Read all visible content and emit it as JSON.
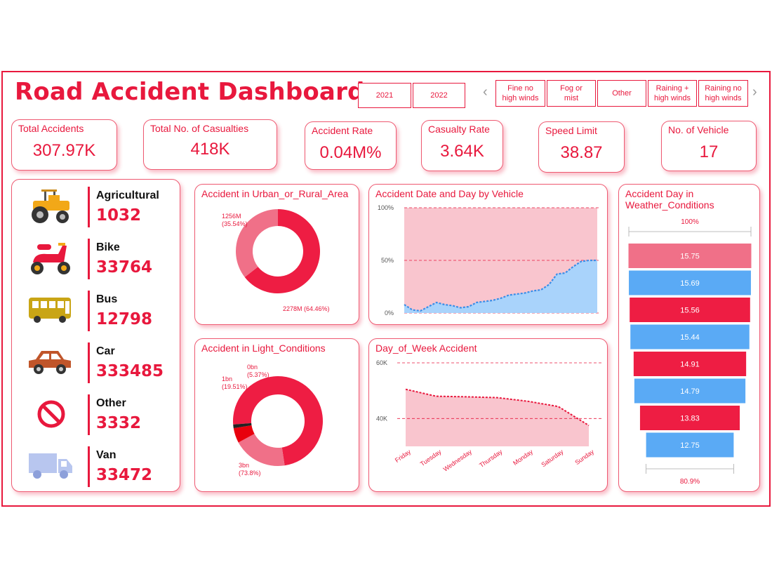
{
  "header": {
    "title": "Road Accident Dashboard"
  },
  "year_slicer": [
    "2021",
    "2022"
  ],
  "weather_slicer": [
    "Fine no high winds",
    "Fog or mist",
    "Other",
    "Raining + high winds",
    "Raining no high winds"
  ],
  "kpis": [
    {
      "label": "Total Accidents",
      "value": "307.97K"
    },
    {
      "label": "Total No. of Casualties",
      "value": "418K"
    },
    {
      "label": "Accident Rate",
      "value": "0.04M%"
    },
    {
      "label": "Casualty Rate",
      "value": "3.64K"
    },
    {
      "label": "Speed Limit",
      "value": "38.87"
    },
    {
      "label": "No. of Vehicle",
      "value": "17"
    }
  ],
  "vehicles": [
    {
      "name": "Agricultural",
      "value": "1032",
      "icon": "tractor-icon"
    },
    {
      "name": "Bike",
      "value": "33764",
      "icon": "scooter-icon"
    },
    {
      "name": "Bus",
      "value": "12798",
      "icon": "bus-icon"
    },
    {
      "name": "Car",
      "value": "333485",
      "icon": "car-icon"
    },
    {
      "name": "Other",
      "value": "3332",
      "icon": "no-entry-icon"
    },
    {
      "name": "Van",
      "value": "33472",
      "icon": "van-icon"
    }
  ],
  "colors": {
    "accent": "#e8183d",
    "pink": "#f07088",
    "light_pink": "#f9c5ce",
    "blue": "#5aaaf5",
    "light_blue": "#a9d3fb"
  },
  "chart_data": [
    {
      "type": "pie",
      "title": "Accident in Urban_or_Rural_Area",
      "slices": [
        {
          "label": "2278M (64.46%)",
          "value": 64.46,
          "color": "#ee1d43"
        },
        {
          "label": "1256M (35.54%)",
          "value": 35.54,
          "color": "#f07088"
        }
      ],
      "label_lines": {
        "1256M (35.54%)": [
          "1256M",
          "(35.54%)"
        ],
        "2278M (64.46%)": [
          "2278M (64.46%)"
        ]
      }
    },
    {
      "type": "pie",
      "title": "Accident in Light_Conditions",
      "slices": [
        {
          "label": "3bn (73.8%)",
          "value": 73.8,
          "color": "#ee1d43"
        },
        {
          "label": "1bn (19.51%)",
          "value": 19.51,
          "color": "#f07088"
        },
        {
          "label": "0bn (5.37%)",
          "value": 5.37,
          "color": "#e8000d"
        },
        {
          "label": "",
          "value": 1.32,
          "color": "#222222"
        }
      ],
      "label_lines": {
        "3bn (73.8%)": [
          "3bn",
          "(73.8%)"
        ],
        "1bn (19.51%)": [
          "1bn",
          "(19.51%)"
        ],
        "0bn (5.37%)": [
          "0bn",
          "(5.37%)"
        ]
      }
    },
    {
      "type": "area",
      "title": "Accident Date and Day by Vehicle",
      "ylim": [
        0,
        100
      ],
      "yticks": [
        "0%",
        "50%",
        "100%"
      ],
      "values": [
        8,
        3,
        2,
        6,
        10,
        8,
        7,
        5,
        6,
        10,
        11,
        12,
        14,
        17,
        18,
        19,
        21,
        22,
        27,
        37,
        38,
        44,
        49,
        50,
        50
      ]
    },
    {
      "type": "area",
      "title": "Day_of_Week Accident",
      "categories": [
        "Friday",
        "Tuesday",
        "Wednesday",
        "Thursday",
        "Monday",
        "Saturday",
        "Sunday"
      ],
      "ylim": [
        30,
        60
      ],
      "yticks": [
        "40K",
        "60K"
      ],
      "values": [
        50.5,
        48,
        47.8,
        47.5,
        46.2,
        44.3,
        37.5
      ]
    },
    {
      "type": "bar",
      "title": "Accident Day in Weather_Conditions",
      "top_label": "100%",
      "bottom_label": "80.9%",
      "values": [
        15.75,
        15.69,
        15.56,
        15.44,
        14.91,
        14.79,
        13.83,
        12.75
      ],
      "labels": [
        "15.75",
        "15.69",
        "15.56",
        "15.44",
        "14.91",
        "14.79",
        "13.83",
        "12.75"
      ],
      "colors": [
        "#f07088",
        "#5aaaf5",
        "#ee1d43",
        "#5aaaf5",
        "#ee1d43",
        "#5aaaf5",
        "#ee1d43",
        "#5aaaf5"
      ]
    }
  ]
}
